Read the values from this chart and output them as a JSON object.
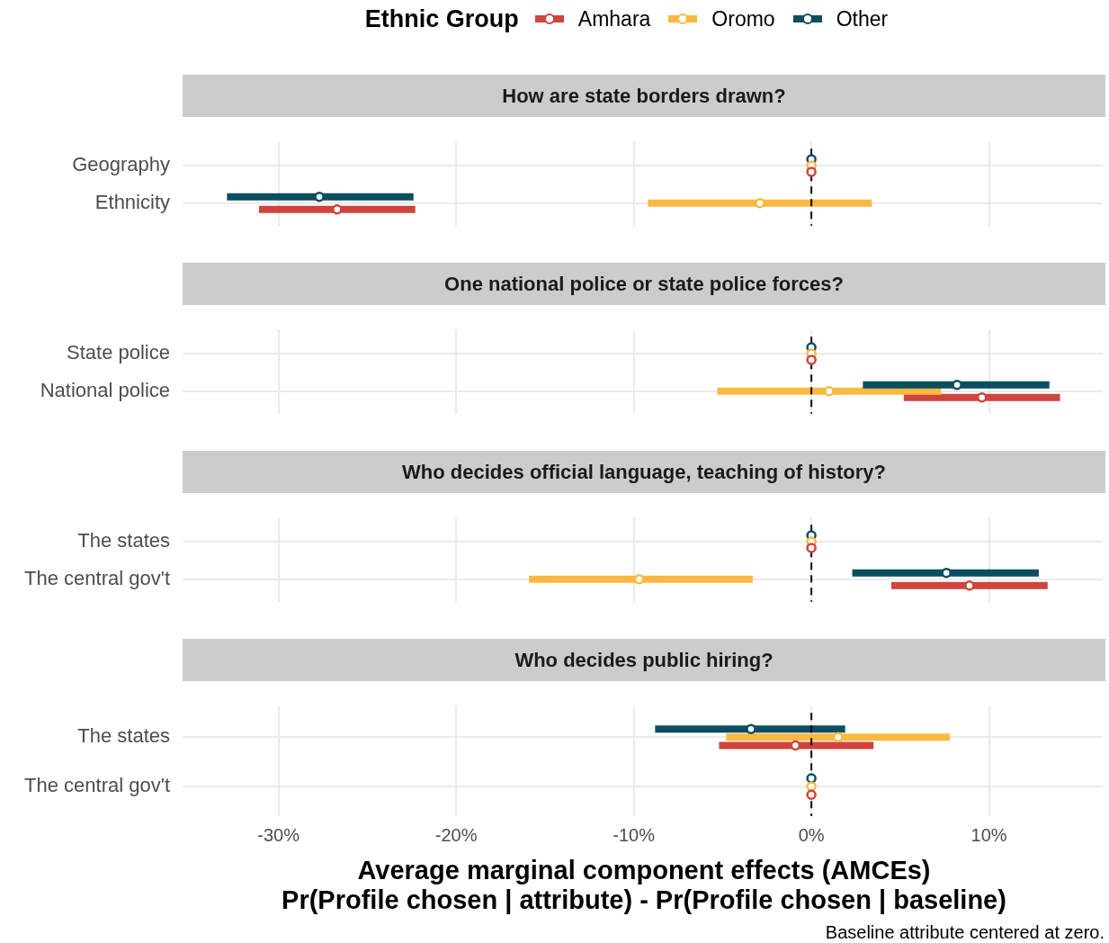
{
  "chart_data": [
    {
      "type": "scatter",
      "orientation": "horizontal",
      "title": "How are state borders drawn?",
      "legend": "top",
      "legend_title": "Ethnic Group",
      "marker": "circle",
      "grid": true,
      "tick_labels": "y",
      "categories": [
        "Geography",
        "Ethnicity"
      ],
      "xlim": [
        -35.4,
        16.4
      ],
      "xticks": [
        -30,
        -20,
        -10,
        0,
        10
      ],
      "ref_lines": [
        {
          "axis": "x",
          "value": 0,
          "line_style": "dashed",
          "color": "#000000"
        }
      ],
      "series": [
        {
          "name": "Amhara",
          "color": "#d0443e",
          "values": [
            0,
            -26.7
          ],
          "errors": [
            null,
            [
              -31.1,
              -22.3
            ]
          ]
        },
        {
          "name": "Oromo",
          "color": "#fcb941",
          "values": [
            0,
            -2.9
          ],
          "errors": [
            null,
            [
              -9.2,
              3.4
            ]
          ]
        },
        {
          "name": "Other",
          "color": "#0b4e60",
          "values": [
            0,
            -27.7
          ],
          "errors": [
            null,
            [
              -32.9,
              -22.4
            ]
          ]
        }
      ]
    },
    {
      "type": "scatter",
      "orientation": "horizontal",
      "title": "One national police or state police forces?",
      "marker": "circle",
      "grid": true,
      "tick_labels": "y",
      "categories": [
        "State police",
        "National police"
      ],
      "xlim": [
        -35.4,
        16.4
      ],
      "xticks": [
        -30,
        -20,
        -10,
        0,
        10
      ],
      "ref_lines": [
        {
          "axis": "x",
          "value": 0,
          "line_style": "dashed",
          "color": "#000000"
        }
      ],
      "series": [
        {
          "color": "#d0443e",
          "values": [
            0,
            9.6
          ],
          "errors": [
            null,
            [
              5.2,
              14.0
            ]
          ]
        },
        {
          "color": "#fcb941",
          "values": [
            0,
            1.0
          ],
          "errors": [
            null,
            [
              -5.3,
              7.3
            ]
          ]
        },
        {
          "color": "#0b4e60",
          "values": [
            0,
            8.2
          ],
          "errors": [
            null,
            [
              2.9,
              13.4
            ]
          ]
        }
      ]
    },
    {
      "type": "scatter",
      "orientation": "horizontal",
      "title": "Who decides official language, teaching of history?",
      "marker": "circle",
      "grid": true,
      "tick_labels": "y",
      "categories": [
        "The states",
        "The central gov't"
      ],
      "xlim": [
        -35.4,
        16.4
      ],
      "xticks": [
        -30,
        -20,
        -10,
        0,
        10
      ],
      "ref_lines": [
        {
          "axis": "x",
          "value": 0,
          "line_style": "dashed",
          "color": "#000000"
        }
      ],
      "series": [
        {
          "color": "#d0443e",
          "values": [
            0,
            8.9
          ],
          "errors": [
            null,
            [
              4.5,
              13.3
            ]
          ]
        },
        {
          "color": "#fcb941",
          "values": [
            0,
            -9.7
          ],
          "errors": [
            null,
            [
              -15.9,
              -3.3
            ]
          ]
        },
        {
          "color": "#0b4e60",
          "values": [
            0,
            7.6
          ],
          "errors": [
            null,
            [
              2.3,
              12.8
            ]
          ]
        }
      ]
    },
    {
      "type": "scatter",
      "orientation": "horizontal",
      "title": "Who decides public hiring?",
      "marker": "circle",
      "grid": true,
      "xlabel": "Average marginal component effects (AMCEs)\nPr(Profile chosen | attribute) - Pr(Profile chosen | baseline)",
      "annotations": [
        "Baseline attribute centered at zero."
      ],
      "categories": [
        "The states",
        "The central gov't"
      ],
      "xlim": [
        -35.4,
        16.4
      ],
      "xticks": [
        {
          "value": -30,
          "label": "-30%"
        },
        {
          "value": -20,
          "label": "-20%"
        },
        {
          "value": -10,
          "label": "-10%"
        },
        {
          "value": 0,
          "label": "0%"
        },
        {
          "value": 10,
          "label": "10%"
        }
      ],
      "ref_lines": [
        {
          "axis": "x",
          "value": 0,
          "line_style": "dashed",
          "color": "#000000"
        }
      ],
      "series": [
        {
          "color": "#d0443e",
          "values": [
            -0.9,
            0
          ],
          "errors": [
            [
              -5.2,
              3.5
            ],
            null
          ]
        },
        {
          "color": "#fcb941",
          "values": [
            1.5,
            0
          ],
          "errors": [
            [
              -4.8,
              7.8
            ],
            null
          ]
        },
        {
          "color": "#0b4e60",
          "values": [
            -3.4,
            0
          ],
          "errors": [
            [
              -8.8,
              1.9
            ],
            null
          ]
        }
      ]
    }
  ]
}
